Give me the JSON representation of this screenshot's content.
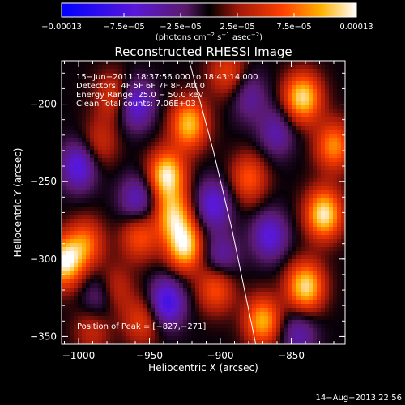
{
  "chart_data": {
    "type": "heatmap",
    "title": "Reconstructed RHESSI Image",
    "xlabel": "Heliocentric X (arcsec)",
    "ylabel": "Heliocentric Y (arcsec)",
    "xlim": [
      -1012,
      -812
    ],
    "ylim": [
      -355,
      -172
    ],
    "xticks": [
      -1000,
      -950,
      -900,
      -850
    ],
    "xtick_labels": [
      "−1000",
      "−950",
      "−900",
      "−850"
    ],
    "yticks": [
      -200,
      -250,
      -300,
      -350
    ],
    "ytick_labels": [
      "−200",
      "−250",
      "−300",
      "−350"
    ],
    "colorbar": {
      "range": [
        -0.00013,
        0.00013
      ],
      "ticks": [
        -0.00013,
        -7.5e-05,
        -2.5e-05,
        2.5e-05,
        7.5e-05,
        0.00013
      ],
      "tick_labels": [
        "−0.00013",
        "−7.5e−05",
        "−2.5e−05",
        "2.5e−05",
        "7.5e−05",
        "0.00013"
      ],
      "unit_main": "(photons cm",
      "unit_exp1": "−2",
      "unit_mid": " s",
      "unit_exp2": "−1",
      "unit_end": " asec",
      "unit_exp3": "−2",
      "unit_close": ")"
    },
    "annotations": [
      "15−Jun−2011 18:37:56.000 to 18:43:14.000",
      "Detectors: 4F 5F 6F 7F 8F, Att 0",
      "Energy Range: 25.0 − 50.0 keV",
      "Clean     Total counts: 7.06E+03"
    ],
    "peak_label": "Position of Peak = [−827,−271]",
    "peak": [
      -827,
      -271
    ],
    "blobs": [
      {
        "x": -938,
        "y": -246,
        "v": 1.0
      },
      {
        "x": -925,
        "y": -292,
        "v": 0.95
      },
      {
        "x": -922,
        "y": -213,
        "v": 0.85
      },
      {
        "x": -933,
        "y": -272,
        "v": 0.8
      },
      {
        "x": -1010,
        "y": -302,
        "v": 1.0
      },
      {
        "x": -995,
        "y": -290,
        "v": 0.6
      },
      {
        "x": -957,
        "y": -285,
        "v": 0.55
      },
      {
        "x": -975,
        "y": -320,
        "v": 0.4
      },
      {
        "x": -840,
        "y": -318,
        "v": 0.95
      },
      {
        "x": -827,
        "y": -271,
        "v": 1.0
      },
      {
        "x": -842,
        "y": -196,
        "v": 0.95
      },
      {
        "x": -870,
        "y": -340,
        "v": 0.8
      },
      {
        "x": -903,
        "y": -318,
        "v": 0.6
      },
      {
        "x": -975,
        "y": -195,
        "v": 0.45
      },
      {
        "x": -985,
        "y": -225,
        "v": 0.35
      },
      {
        "x": -880,
        "y": -248,
        "v": 0.55
      },
      {
        "x": -820,
        "y": -227,
        "v": 0.7
      },
      {
        "x": -895,
        "y": -180,
        "v": 0.45
      },
      {
        "x": -955,
        "y": -340,
        "v": 0.45
      },
      {
        "x": -990,
        "y": -345,
        "v": 0.35
      },
      {
        "x": -960,
        "y": -200,
        "v": -0.6
      },
      {
        "x": -1000,
        "y": -240,
        "v": -0.6
      },
      {
        "x": -905,
        "y": -265,
        "v": -0.55
      },
      {
        "x": -958,
        "y": -262,
        "v": -0.5
      },
      {
        "x": -865,
        "y": -285,
        "v": -0.55
      },
      {
        "x": -860,
        "y": -218,
        "v": -0.4
      },
      {
        "x": -938,
        "y": -328,
        "v": -0.7
      },
      {
        "x": -900,
        "y": -300,
        "v": -0.45
      },
      {
        "x": -845,
        "y": -348,
        "v": -0.4
      },
      {
        "x": -985,
        "y": -325,
        "v": -0.4
      },
      {
        "x": -880,
        "y": -195,
        "v": -0.35
      }
    ],
    "limb_curve": [
      [
        -922,
        -172
      ],
      [
        -905,
        -230
      ],
      [
        -892,
        -280
      ],
      [
        -875,
        -355
      ]
    ]
  },
  "footer_date": "14−Aug−2013 22:56"
}
